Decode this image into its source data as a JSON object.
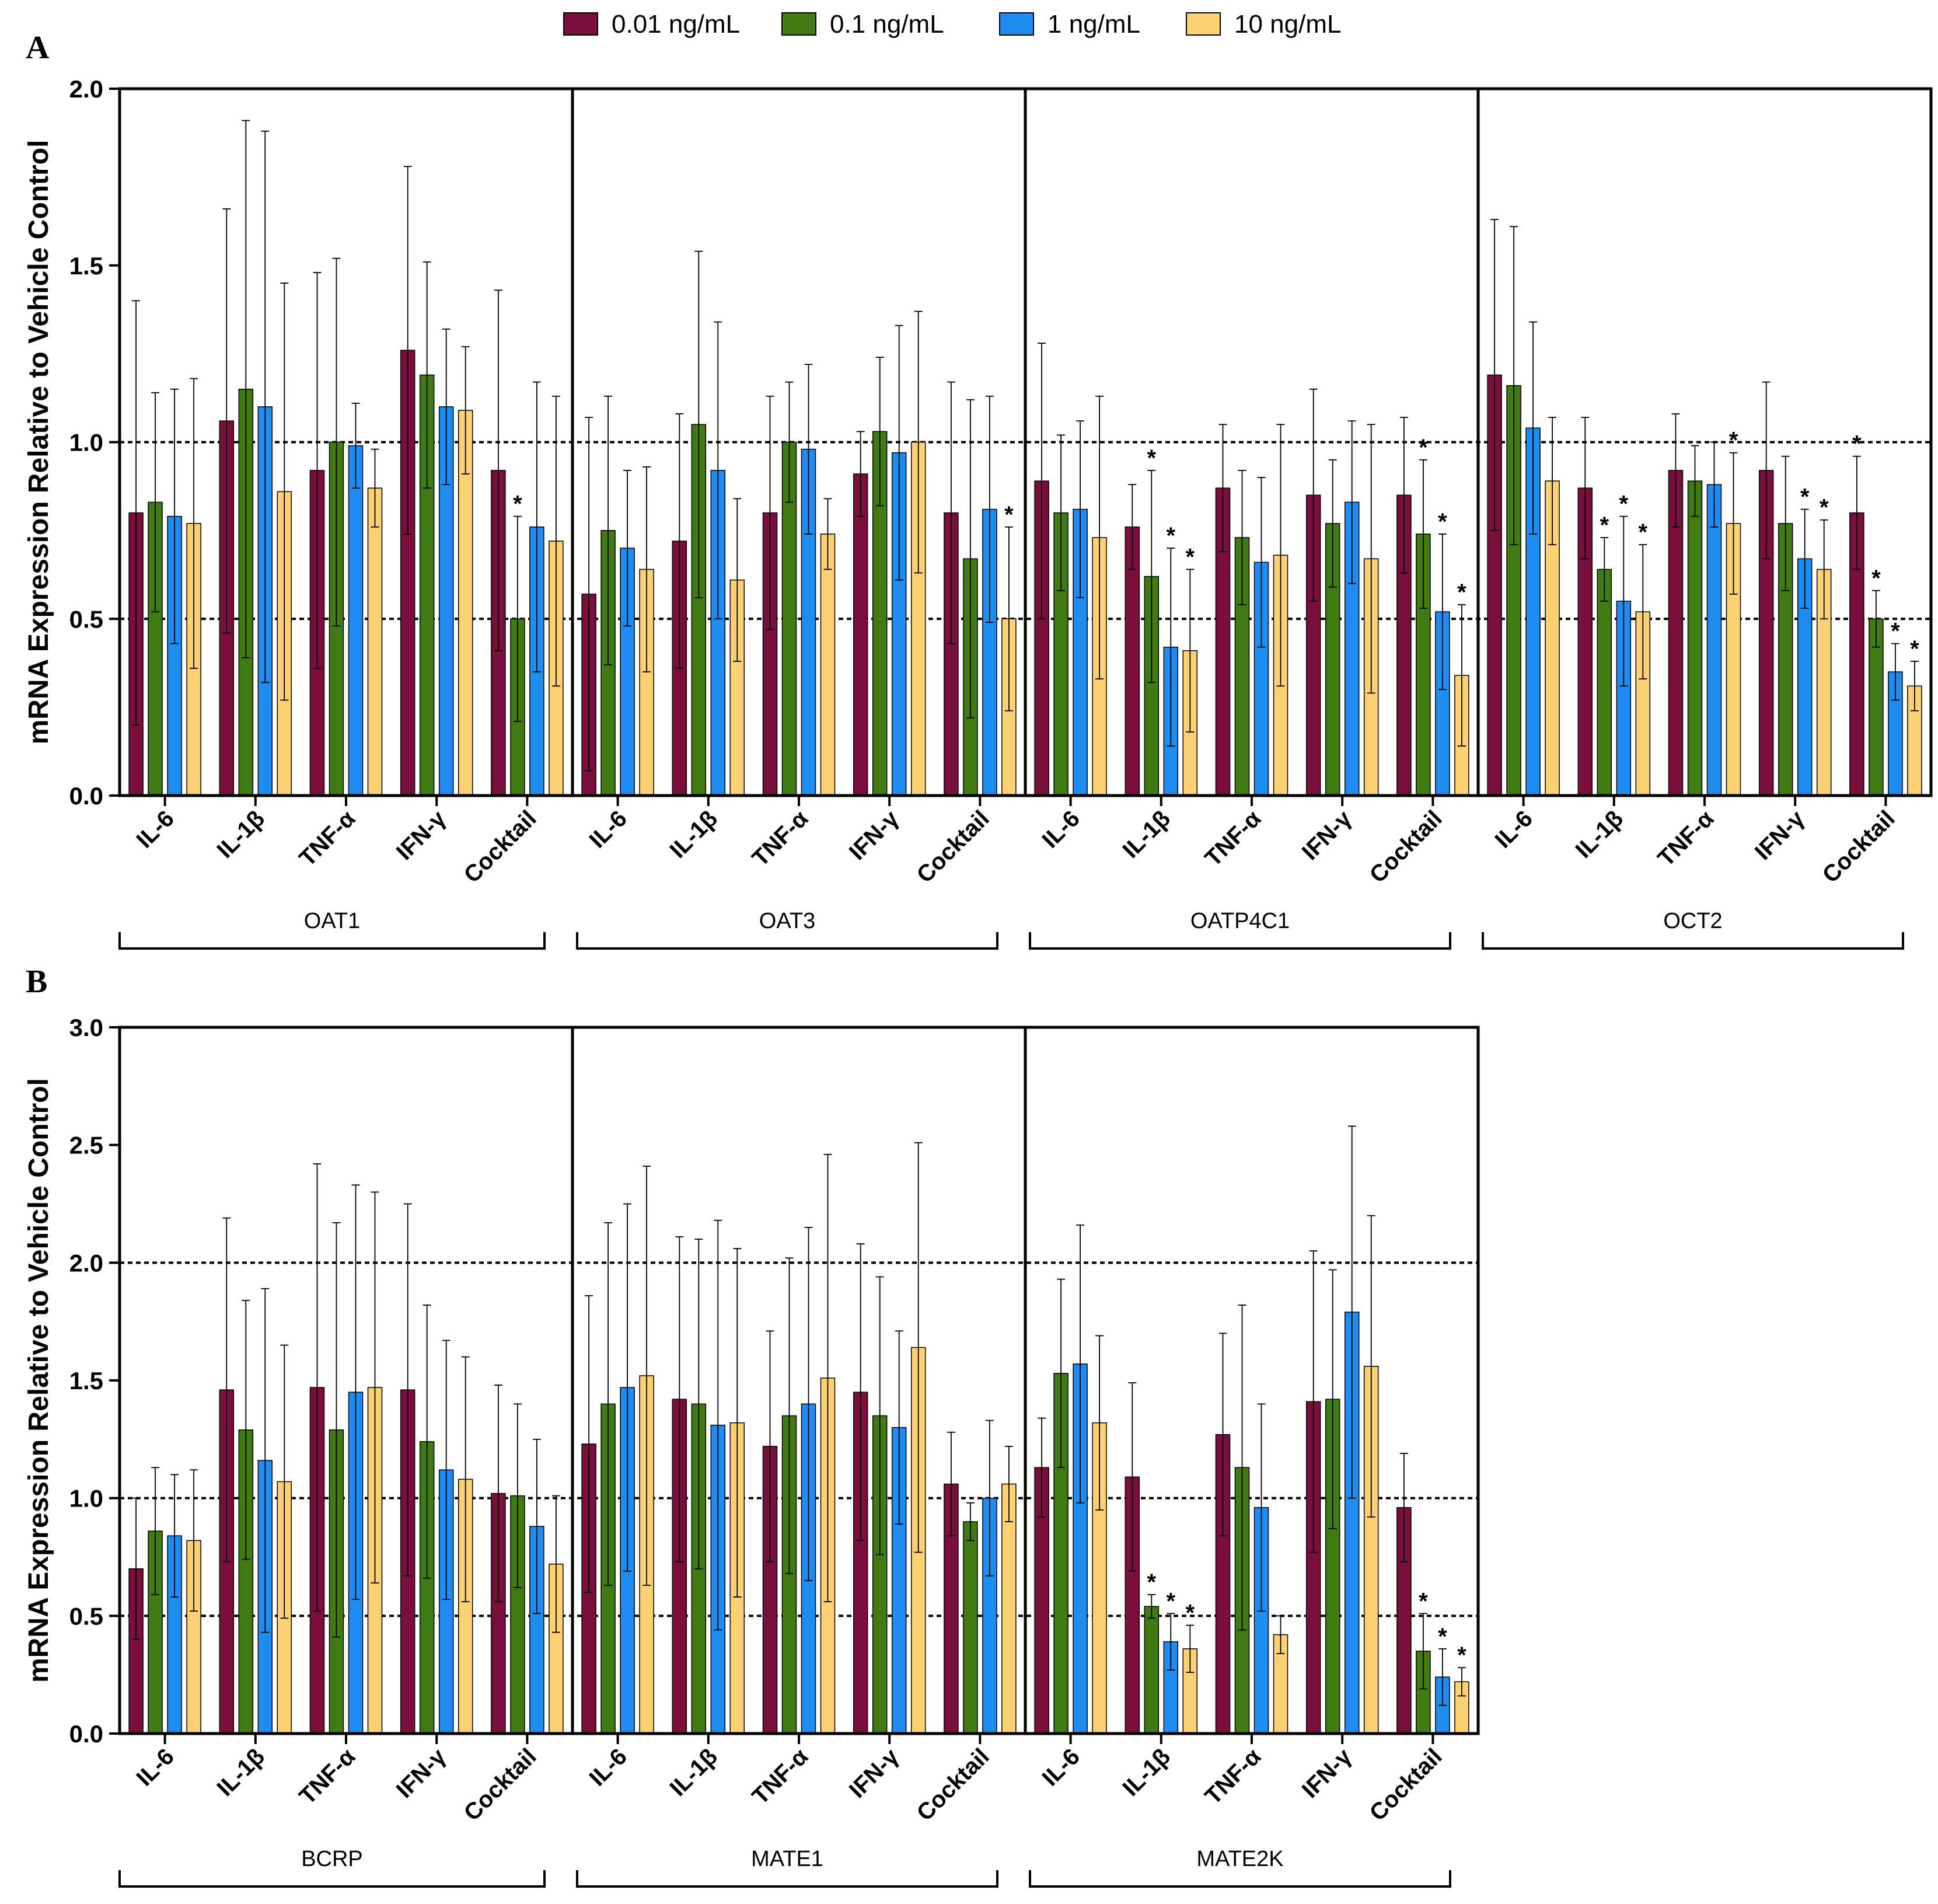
{
  "colors": {
    "0.01 ng/mL": "#7a0f3e",
    "0.1 ng/mL": "#3f7a12",
    "1 ng/mL": "#1e8cf0",
    "10 ng/mL": "#fcd173"
  },
  "chart_data": {
    "type": "bar",
    "legend": [
      "0.01 ng/mL",
      "0.1 ng/mL",
      "1 ng/mL",
      "10 ng/mL"
    ],
    "categories": [
      "IL-6",
      "IL-1β",
      "TNF-α",
      "IFN-γ",
      "Cocktail"
    ],
    "panels": [
      {
        "label": "A",
        "ylabel": "mRNA Expression Relative to Vehicle Control",
        "ylim": [
          0,
          2.0
        ],
        "yticks": [
          "0.0",
          "0.5",
          "1.0",
          "1.5",
          "2.0"
        ],
        "reference_lines": [
          0.5,
          1.0
        ],
        "groups": [
          {
            "name": "OAT1",
            "values": [
              [
                0.8,
                0.83,
                0.79,
                0.77
              ],
              [
                1.06,
                1.15,
                1.1,
                0.86
              ],
              [
                0.92,
                1.0,
                0.99,
                0.87
              ],
              [
                1.26,
                1.19,
                1.1,
                1.09
              ],
              [
                0.92,
                0.5,
                0.76,
                0.72
              ]
            ],
            "errors": [
              [
                0.6,
                0.31,
                0.36,
                0.41
              ],
              [
                0.6,
                0.76,
                0.78,
                0.59
              ],
              [
                0.56,
                0.52,
                0.12,
                0.11
              ],
              [
                0.52,
                0.32,
                0.22,
                0.18
              ],
              [
                0.51,
                0.29,
                0.41,
                0.41
              ]
            ],
            "sig": [
              [
                0,
                0,
                0,
                0
              ],
              [
                0,
                0,
                0,
                0
              ],
              [
                0,
                0,
                0,
                0
              ],
              [
                0,
                0,
                0,
                0
              ],
              [
                0,
                1,
                0,
                0
              ]
            ]
          },
          {
            "name": "OAT3",
            "values": [
              [
                0.57,
                0.75,
                0.7,
                0.64
              ],
              [
                0.72,
                1.05,
                0.92,
                0.61
              ],
              [
                0.8,
                1.0,
                0.98,
                0.74
              ],
              [
                0.91,
                1.03,
                0.97,
                1.0
              ],
              [
                0.8,
                0.67,
                0.81,
                0.5
              ]
            ],
            "errors": [
              [
                0.5,
                0.38,
                0.22,
                0.29
              ],
              [
                0.36,
                0.49,
                0.42,
                0.23
              ],
              [
                0.33,
                0.17,
                0.24,
                0.1
              ],
              [
                0.12,
                0.21,
                0.36,
                0.37
              ],
              [
                0.37,
                0.45,
                0.32,
                0.26
              ]
            ],
            "sig": [
              [
                0,
                0,
                0,
                0
              ],
              [
                0,
                0,
                0,
                0
              ],
              [
                0,
                0,
                0,
                0
              ],
              [
                0,
                0,
                0,
                0
              ],
              [
                0,
                0,
                0,
                1
              ]
            ]
          },
          {
            "name": "OATP4C1",
            "values": [
              [
                0.89,
                0.8,
                0.81,
                0.73
              ],
              [
                0.76,
                0.62,
                0.42,
                0.41
              ],
              [
                0.87,
                0.73,
                0.66,
                0.68
              ],
              [
                0.85,
                0.77,
                0.83,
                0.67
              ],
              [
                0.85,
                0.74,
                0.52,
                0.34
              ]
            ],
            "errors": [
              [
                0.39,
                0.22,
                0.25,
                0.4
              ],
              [
                0.12,
                0.3,
                0.28,
                0.23
              ],
              [
                0.18,
                0.19,
                0.24,
                0.37
              ],
              [
                0.3,
                0.18,
                0.23,
                0.38
              ],
              [
                0.22,
                0.21,
                0.22,
                0.2
              ]
            ],
            "sig": [
              [
                0,
                0,
                0,
                0
              ],
              [
                0,
                1,
                1,
                1
              ],
              [
                0,
                0,
                0,
                0
              ],
              [
                0,
                0,
                0,
                0
              ],
              [
                0,
                1,
                1,
                1
              ]
            ]
          },
          {
            "name": "OCT2",
            "values": [
              [
                1.19,
                1.16,
                1.04,
                0.89
              ],
              [
                0.87,
                0.64,
                0.55,
                0.52
              ],
              [
                0.92,
                0.89,
                0.88,
                0.77
              ],
              [
                0.92,
                0.77,
                0.67,
                0.64
              ],
              [
                0.8,
                0.5,
                0.35,
                0.31
              ]
            ],
            "errors": [
              [
                0.44,
                0.45,
                0.3,
                0.18
              ],
              [
                0.2,
                0.09,
                0.24,
                0.19
              ],
              [
                0.16,
                0.1,
                0.12,
                0.2
              ],
              [
                0.25,
                0.19,
                0.14,
                0.14
              ],
              [
                0.16,
                0.08,
                0.08,
                0.07
              ]
            ],
            "sig": [
              [
                0,
                0,
                0,
                0
              ],
              [
                0,
                1,
                1,
                1
              ],
              [
                0,
                0,
                0,
                1
              ],
              [
                0,
                0,
                1,
                1
              ],
              [
                1,
                1,
                1,
                1
              ]
            ]
          }
        ]
      },
      {
        "label": "B",
        "ylabel": "mRNA Expression Relative to Vehicle Control",
        "ylim": [
          0,
          3.0
        ],
        "yticks": [
          "0.0",
          "0.5",
          "1.0",
          "1.5",
          "2.0",
          "2.5",
          "3.0"
        ],
        "reference_lines": [
          0.5,
          1.0,
          2.0
        ],
        "groups": [
          {
            "name": "BCRP",
            "values": [
              [
                0.7,
                0.86,
                0.84,
                0.82
              ],
              [
                1.46,
                1.29,
                1.16,
                1.07
              ],
              [
                1.47,
                1.29,
                1.45,
                1.47
              ],
              [
                1.46,
                1.24,
                1.12,
                1.08
              ],
              [
                1.02,
                1.01,
                0.88,
                0.72
              ]
            ],
            "errors": [
              [
                0.3,
                0.27,
                0.26,
                0.3
              ],
              [
                0.73,
                0.55,
                0.73,
                0.58
              ],
              [
                0.95,
                0.88,
                0.88,
                0.83
              ],
              [
                0.79,
                0.58,
                0.55,
                0.52
              ],
              [
                0.46,
                0.39,
                0.37,
                0.29
              ]
            ],
            "sig": [
              [
                0,
                0,
                0,
                0
              ],
              [
                0,
                0,
                0,
                0
              ],
              [
                0,
                0,
                0,
                0
              ],
              [
                0,
                0,
                0,
                0
              ],
              [
                0,
                0,
                0,
                0
              ]
            ]
          },
          {
            "name": "MATE1",
            "values": [
              [
                1.23,
                1.4,
                1.47,
                1.52
              ],
              [
                1.42,
                1.4,
                1.31,
                1.32
              ],
              [
                1.22,
                1.35,
                1.4,
                1.51
              ],
              [
                1.45,
                1.35,
                1.3,
                1.64
              ],
              [
                1.06,
                0.9,
                1.0,
                1.06
              ]
            ],
            "errors": [
              [
                0.63,
                0.77,
                0.78,
                0.89
              ],
              [
                0.69,
                0.7,
                0.87,
                0.74
              ],
              [
                0.49,
                0.67,
                0.75,
                0.95
              ],
              [
                0.63,
                0.59,
                0.41,
                0.87
              ],
              [
                0.22,
                0.08,
                0.33,
                0.16
              ]
            ],
            "sig": [
              [
                0,
                0,
                0,
                0
              ],
              [
                0,
                0,
                0,
                0
              ],
              [
                0,
                0,
                0,
                0
              ],
              [
                0,
                0,
                0,
                0
              ],
              [
                0,
                0,
                0,
                0
              ]
            ]
          },
          {
            "name": "MATE2K",
            "values": [
              [
                1.13,
                1.53,
                1.57,
                1.32
              ],
              [
                1.09,
                0.54,
                0.39,
                0.36
              ],
              [
                1.27,
                1.13,
                0.96,
                0.42
              ],
              [
                1.41,
                1.42,
                1.79,
                1.56
              ],
              [
                0.96,
                0.35,
                0.24,
                0.22
              ]
            ],
            "errors": [
              [
                0.21,
                0.4,
                0.59,
                0.37
              ],
              [
                0.4,
                0.05,
                0.12,
                0.1
              ],
              [
                0.43,
                0.69,
                0.44,
                0.08
              ],
              [
                0.64,
                0.55,
                0.79,
                0.64
              ],
              [
                0.23,
                0.16,
                0.12,
                0.06
              ]
            ],
            "sig": [
              [
                0,
                0,
                0,
                0
              ],
              [
                0,
                1,
                1,
                1
              ],
              [
                0,
                0,
                0,
                0
              ],
              [
                0,
                0,
                0,
                0
              ],
              [
                0,
                1,
                1,
                1
              ]
            ]
          }
        ]
      }
    ]
  }
}
